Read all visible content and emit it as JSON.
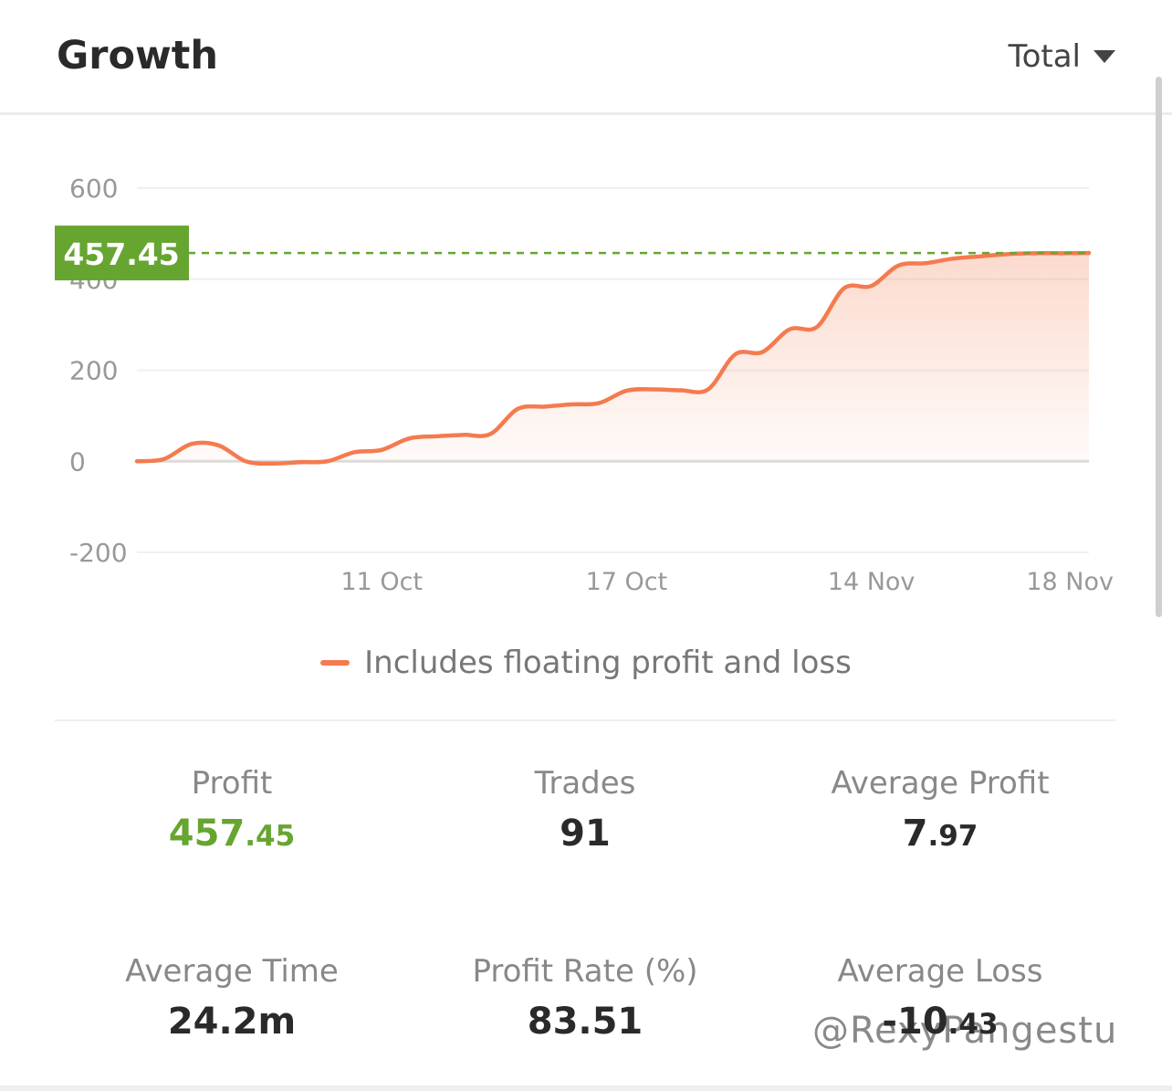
{
  "header": {
    "title": "Growth",
    "period_label": "Total"
  },
  "chart_data": {
    "type": "area",
    "x": [
      0,
      1,
      2,
      3,
      4,
      5,
      6,
      7,
      8,
      9,
      10,
      11,
      12,
      13,
      14,
      15,
      16,
      17,
      18,
      19,
      20,
      21,
      22,
      23,
      24,
      25,
      26,
      27,
      28,
      29,
      30,
      31,
      32,
      33,
      34,
      35
    ],
    "y": [
      0,
      5,
      38,
      35,
      0,
      -5,
      -2,
      0,
      20,
      25,
      50,
      55,
      58,
      60,
      115,
      120,
      125,
      128,
      155,
      158,
      156,
      158,
      235,
      240,
      290,
      295,
      380,
      385,
      430,
      435,
      445,
      450,
      455,
      457,
      457,
      457.45
    ],
    "x_tick_labels": [
      {
        "label": "11 Oct",
        "at": 9
      },
      {
        "label": "17 Oct",
        "at": 18
      },
      {
        "label": "14 Nov",
        "at": 27
      },
      {
        "label": "18 Nov",
        "at": 34.3
      }
    ],
    "y_ticks": [
      600,
      400,
      200,
      0,
      -200
    ],
    "ylim": [
      -200,
      600
    ],
    "current_value_label": "457.45",
    "legend": [
      {
        "name": "Includes floating profit and loss",
        "color": "#f47b4f"
      }
    ],
    "grid": true,
    "colors": {
      "line": "#f47b4f",
      "badge": "#67a531",
      "reference": "#67a531"
    }
  },
  "stats": [
    {
      "label": "Profit",
      "int": "457",
      "dec": ".45",
      "accent": true
    },
    {
      "label": "Trades",
      "int": "91",
      "dec": ""
    },
    {
      "label": "Average Profit",
      "int": "7",
      "dec": ".97"
    },
    {
      "label": "Average Time",
      "int": "24.2m",
      "dec": ""
    },
    {
      "label": "Profit Rate (%)",
      "int": "83.51",
      "dec": ""
    },
    {
      "label": "Average Loss",
      "int": "-10",
      "dec": ".43"
    }
  ],
  "watermark": "@RexyPangestu"
}
